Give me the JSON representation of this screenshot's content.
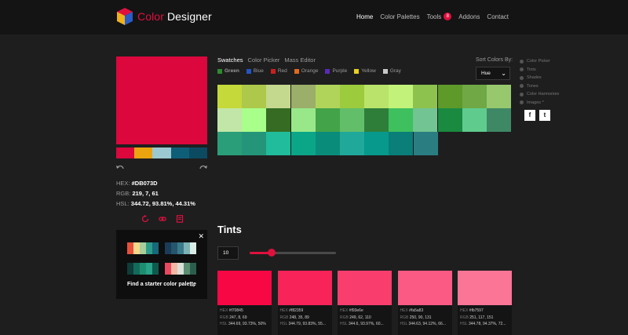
{
  "header": {
    "brand_accent": "Color",
    "brand_rest": " Designer",
    "nav": [
      {
        "label": "Home"
      },
      {
        "label": "Color Palettes"
      },
      {
        "label": "Tools",
        "badge": "8"
      },
      {
        "label": "Addons"
      },
      {
        "label": "Contact"
      }
    ]
  },
  "current_color": {
    "hex_label": "HEX:",
    "hex": "#DB073D",
    "rgb_label": "RGB:",
    "rgb": "219, 7, 61",
    "hsl_label": "HSL:",
    "hsl": "344.72, 93.81%, 44.31%",
    "swatch": "#DB073D",
    "scheme": [
      "#DB073D",
      "#E9A40F",
      "#9CC9D1",
      "#0E5E78",
      "#0C4A62"
    ]
  },
  "starter": {
    "link_label": "Find a starter color palette",
    "palettes": [
      [
        "#E8503A",
        "#F7D78A",
        "#A8CE9C",
        "#2E9C8A",
        "#166A7A"
      ],
      [
        "#1B3C58",
        "#24566E",
        "#3A7A8A",
        "#7DB3B5",
        "#D8EDE6"
      ],
      [
        "#0E3D3A",
        "#136B5C",
        "#1E8E70",
        "#29A38A",
        "#0F5A4F"
      ],
      [
        "#E8495E",
        "#F5B8A5",
        "#D9E1D8",
        "#5B8E73",
        "#2C5E4D"
      ]
    ]
  },
  "tabs": [
    {
      "label": "Swatches",
      "active": true
    },
    {
      "label": "Color Picker"
    },
    {
      "label": "Mass Editor"
    }
  ],
  "hues": [
    {
      "label": "Green",
      "color": "#2E8B2E",
      "active": true
    },
    {
      "label": "Blue",
      "color": "#2455C3"
    },
    {
      "label": "Red",
      "color": "#C8201E"
    },
    {
      "label": "Orange",
      "color": "#E06A1E"
    },
    {
      "label": "Purple",
      "color": "#5A2AB8"
    },
    {
      "label": "Yellow",
      "color": "#E8D21E"
    },
    {
      "label": "Gray",
      "color": "#C8C8C8"
    }
  ],
  "sort": {
    "label": "Sort Colors By:",
    "value": "Hue"
  },
  "swatch_grid": [
    [
      "#C5D93A",
      "#ADC84B",
      "#C4D88E",
      "#9BAE6A",
      "#B0D45A",
      "#9CCB3E",
      "#B9E36A",
      "#C3F27A",
      "#8DC24E",
      "#5D9A2A",
      "#6FA845",
      "#98C86E"
    ],
    [
      "#C2E6A8",
      "#A8FF8A",
      "#356B23",
      "#98E88A",
      "#43A348",
      "#63BE6A",
      "#2E7E3A",
      "#3FC05E",
      "#72C493",
      "#1A8A40",
      "#5FCC8E",
      "#3E8865"
    ],
    [
      "#2A9E78",
      "#25957A",
      "#20BC9C",
      "#0BA688",
      "#0A8C7A",
      "#20A89A",
      "#06998C",
      "#0A7E78",
      "#2A7E82"
    ]
  ],
  "side_list": [
    "Color Picker",
    "Tints",
    "Shades",
    "Tones",
    "Color Harmonies",
    "Images *"
  ],
  "share": {
    "facebook": "f",
    "twitter": "t"
  },
  "tints": {
    "title": "Tints",
    "steps": "10",
    "slider_fraction": 0.25,
    "items": [
      {
        "color": "#F70845",
        "hex": "#f70845",
        "rgb": "247, 8, 69",
        "hsl": "344.69, 93.73%, 50%"
      },
      {
        "color": "#F82359",
        "hex": "#f82359",
        "rgb": "248, 35, 89",
        "hsl": "344.79, 93.83%, 55..."
      },
      {
        "color": "#F93E6E",
        "hex": "#f93e6e",
        "rgb": "249, 62, 110",
        "hsl": "344.6, 93.97%, 60..."
      },
      {
        "color": "#FA5A83",
        "hex": "#fa5a83",
        "rgb": "250, 90, 131",
        "hsl": "344.63, 94.12%, 66..."
      },
      {
        "color": "#FB7597",
        "hex": "#fb7597",
        "rgb": "251, 117, 151",
        "hsl": "344.78, 94.37%, 72..."
      }
    ],
    "hex_label": "HEX",
    "rgb_label": "RGB",
    "hsl_label": "HSL"
  }
}
